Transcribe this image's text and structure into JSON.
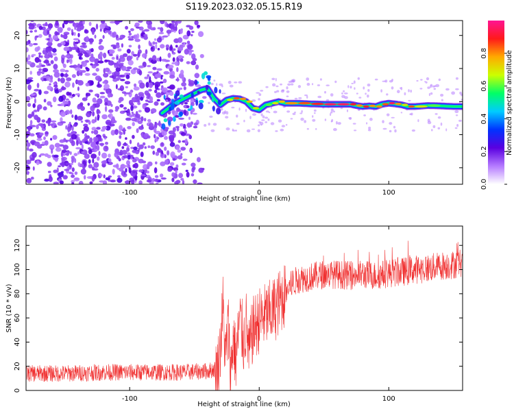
{
  "figure": {
    "title": "S119.2023.032.05.15.R19"
  },
  "chart_data": [
    {
      "type": "heatmap",
      "xlabel": "Height of straight line (km)",
      "ylabel": "Frequency (Hz)",
      "xlim": [
        -180,
        157
      ],
      "ylim": [
        -25,
        24.5
      ],
      "x_ticks": [
        -100,
        0,
        100
      ],
      "y_ticks": [
        -20,
        -10,
        0,
        10,
        20
      ],
      "colorbar": {
        "label": "Normalized spectral amplitude",
        "range": [
          0,
          1
        ],
        "ticks": [
          0.0,
          0.2,
          0.4,
          0.6,
          0.8
        ],
        "colormap": [
          "#ffffff",
          "#b57bff",
          "#5a00e0",
          "#0033ff",
          "#00ccff",
          "#00ff66",
          "#ccff00",
          "#ffaa00",
          "#ff1a1a",
          "#ff1493"
        ]
      },
      "noise_region_x": [
        -180,
        -42
      ],
      "signal_ridge": {
        "x": [
          -75,
          -70,
          -65,
          -60,
          -55,
          -50,
          -45,
          -40,
          -35,
          -30,
          -25,
          -20,
          -15,
          -10,
          -5,
          0,
          5,
          10,
          15,
          20,
          30,
          40,
          50,
          60,
          70,
          75,
          80,
          85,
          90,
          95,
          100,
          105,
          110,
          115,
          120,
          130,
          140,
          150,
          157
        ],
        "y": [
          -3.5,
          -2,
          -0.5,
          0.5,
          1.5,
          2.5,
          3.5,
          4,
          1,
          -1,
          0.5,
          1,
          0.8,
          0,
          -2,
          -2.5,
          -1,
          -0.5,
          0,
          -0.5,
          -0.5,
          -0.7,
          -0.8,
          -0.8,
          -0.8,
          -1.2,
          -1.5,
          -1.3,
          -1.5,
          -0.8,
          -0.5,
          -0.7,
          -1,
          -1.5,
          -1.5,
          -1.2,
          -1.3,
          -1.5,
          -1.5
        ],
        "amplitude": [
          0.3,
          0.4,
          0.45,
          0.4,
          0.5,
          0.4,
          0.45,
          0.5,
          0.45,
          0.5,
          0.7,
          0.85,
          0.8,
          0.75,
          0.7,
          0.5,
          0.6,
          0.7,
          0.75,
          0.8,
          0.85,
          0.9,
          0.95,
          0.95,
          0.9,
          0.8,
          0.9,
          0.8,
          0.8,
          0.85,
          0.95,
          0.8,
          0.7,
          0.85,
          0.7,
          0.6,
          0.55,
          0.5,
          0.5
        ]
      }
    },
    {
      "type": "line",
      "xlabel": "Height of straight line (km)",
      "ylabel": "SNR (10 * v/v)",
      "xlim": [
        -180,
        157
      ],
      "ylim": [
        0,
        136
      ],
      "x_ticks": [
        -100,
        0,
        100
      ],
      "y_ticks": [
        0,
        20,
        40,
        60,
        80,
        100,
        120
      ],
      "color": "#f03030",
      "series": [
        {
          "x": [
            -180,
            -150,
            -120,
            -90,
            -60,
            -40,
            -32,
            -30,
            -28,
            -26,
            -24,
            -22,
            -20,
            -18,
            -15,
            -12,
            -10,
            -8,
            -5,
            0,
            5,
            10,
            15,
            20,
            25,
            30,
            40,
            50,
            60,
            70,
            80,
            90,
            100,
            110,
            120,
            130,
            140,
            150,
            157
          ],
          "y": [
            14,
            14,
            15,
            15,
            15,
            16,
            18,
            35,
            70,
            25,
            55,
            15,
            45,
            25,
            60,
            40,
            55,
            30,
            50,
            58,
            62,
            65,
            72,
            80,
            88,
            92,
            94,
            96,
            96,
            95,
            96,
            95,
            97,
            98,
            100,
            101,
            103,
            104,
            106
          ]
        }
      ]
    }
  ]
}
